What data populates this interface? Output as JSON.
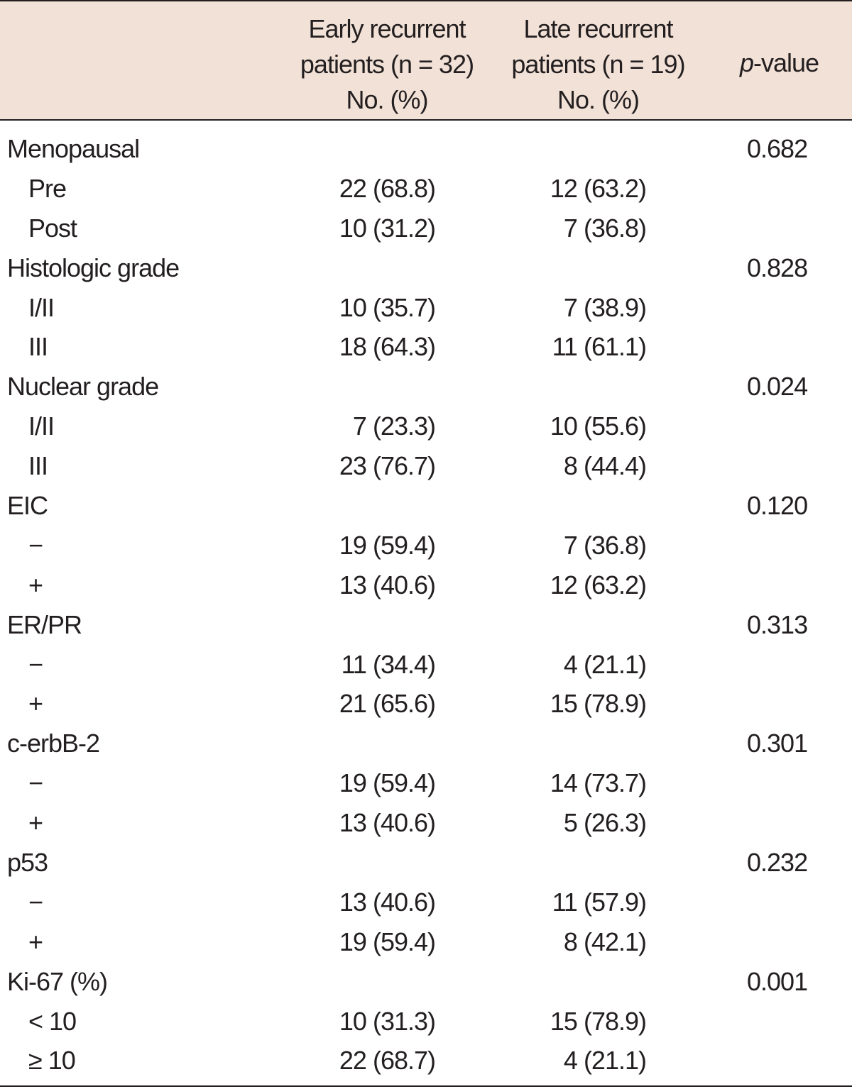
{
  "header": {
    "early_line1": "Early recurrent",
    "early_line2": "patients (n = 32)",
    "early_line3": "No. (%)",
    "late_line1": "Late recurrent",
    "late_line2": "patients (n = 19)",
    "late_line3": "No. (%)",
    "p_italic": "p",
    "p_rest": "-value"
  },
  "rows": [
    {
      "label": "Menopausal",
      "early": "",
      "late": "",
      "p": "0.682"
    },
    {
      "label": "Pre",
      "early": "22 (68.8)",
      "late": "12 (63.2)",
      "p": ""
    },
    {
      "label": "Post",
      "early": "10 (31.2)",
      "late": "7 (36.8)",
      "p": ""
    },
    {
      "label": "Histologic grade",
      "early": "",
      "late": "",
      "p": "0.828"
    },
    {
      "label": "I/II",
      "early": "10 (35.7)",
      "late": "7 (38.9)",
      "p": ""
    },
    {
      "label": "III",
      "early": "18 (64.3)",
      "late": "11 (61.1)",
      "p": ""
    },
    {
      "label": "Nuclear grade",
      "early": "",
      "late": "",
      "p": "0.024"
    },
    {
      "label": "I/II",
      "early": "7 (23.3)",
      "late": "10 (55.6)",
      "p": ""
    },
    {
      "label": "III",
      "early": "23 (76.7)",
      "late": "8 (44.4)",
      "p": ""
    },
    {
      "label": "EIC",
      "early": "",
      "late": "",
      "p": "0.120"
    },
    {
      "label": "−",
      "early": "19 (59.4)",
      "late": "7 (36.8)",
      "p": ""
    },
    {
      "label": "+",
      "early": "13 (40.6)",
      "late": "12 (63.2)",
      "p": ""
    },
    {
      "label": "ER/PR",
      "early": "",
      "late": "",
      "p": "0.313"
    },
    {
      "label": "−",
      "early": "11 (34.4)",
      "late": "4 (21.1)",
      "p": ""
    },
    {
      "label": "+",
      "early": "21 (65.6)",
      "late": "15 (78.9)",
      "p": ""
    },
    {
      "label": "c-erbB-2",
      "early": "",
      "late": "",
      "p": "0.301"
    },
    {
      "label": "−",
      "early": "19 (59.4)",
      "late": "14 (73.7)",
      "p": ""
    },
    {
      "label": "+",
      "early": "13 (40.6)",
      "late": "5 (26.3)",
      "p": ""
    },
    {
      "label": "p53",
      "early": "",
      "late": "",
      "p": "0.232"
    },
    {
      "label": "−",
      "early": "13 (40.6)",
      "late": "11 (57.9)",
      "p": ""
    },
    {
      "label": "+",
      "early": "19 (59.4)",
      "late": "8 (42.1)",
      "p": ""
    },
    {
      "label": "Ki-67 (%)",
      "early": "",
      "late": "",
      "p": "0.001"
    },
    {
      "label": "< 10",
      "early": "10 (31.3)",
      "late": "15 (78.9)",
      "p": ""
    },
    {
      "label": "≥ 10",
      "early": "22 (68.7)",
      "late": "4 (21.1)",
      "p": ""
    }
  ]
}
